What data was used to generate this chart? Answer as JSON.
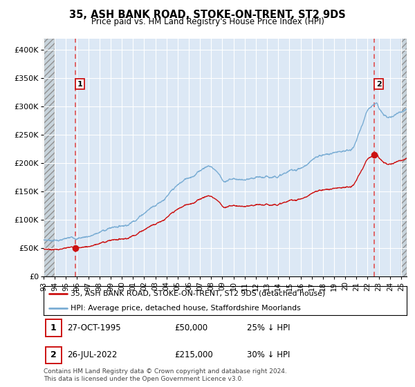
{
  "title": "35, ASH BANK ROAD, STOKE-ON-TRENT, ST2 9DS",
  "subtitle": "Price paid vs. HM Land Registry's House Price Index (HPI)",
  "legend_line1": "35, ASH BANK ROAD, STOKE-ON-TRENT, ST2 9DS (detached house)",
  "legend_line2": "HPI: Average price, detached house, Staffordshire Moorlands",
  "annotation1_date": "27-OCT-1995",
  "annotation1_price": "£50,000",
  "annotation1_hpi": "25% ↓ HPI",
  "annotation2_date": "26-JUL-2022",
  "annotation2_price": "£215,000",
  "annotation2_hpi": "30% ↓ HPI",
  "footnote": "Contains HM Land Registry data © Crown copyright and database right 2024.\nThis data is licensed under the Open Government Licence v3.0.",
  "sale1_year": 1995.83,
  "sale1_price": 50000,
  "sale2_year": 2022.57,
  "sale2_price": 215000,
  "hpi_color": "#7aadd4",
  "sale_color": "#cc1111",
  "dashed_line_color": "#e05050",
  "plot_bg_color": "#dce8f5",
  "hatch_color": "#c8d4dc",
  "grid_color": "#ffffff",
  "ylim": [
    0,
    420000
  ],
  "xlim_start": 1993.0,
  "xlim_end": 2025.5,
  "hatch_left_end": 1994.0,
  "hatch_right_start": 2025.0
}
